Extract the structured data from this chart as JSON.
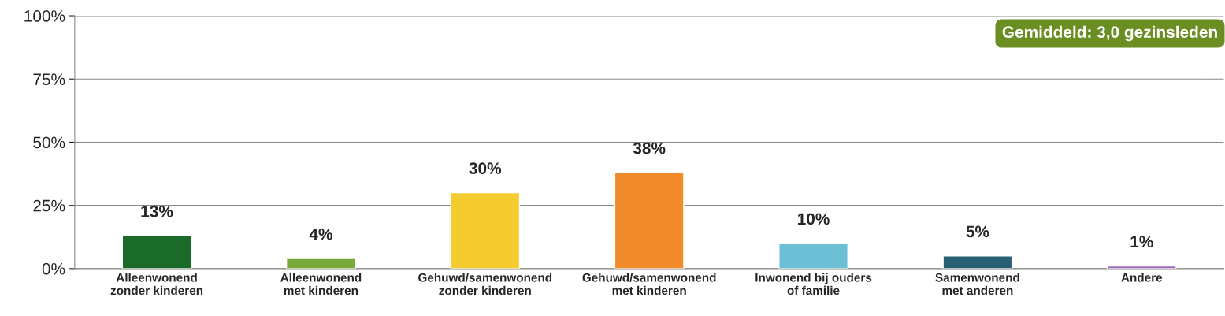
{
  "chart_data": {
    "type": "bar",
    "categories": [
      "Alleenwonend\nzonder kinderen",
      "Alleenwonend\nmet kinderen",
      "Gehuwd/samenwonend\nzonder kinderen",
      "Gehuwd/samenwonend\nmet kinderen",
      "Inwonend bij ouders\nof familie",
      "Samenwonend\nmet anderen",
      "Andere"
    ],
    "values": [
      13,
      4,
      30,
      38,
      10,
      5,
      1
    ],
    "value_labels": [
      "13%",
      "4%",
      "30%",
      "38%",
      "10%",
      "5%",
      "1%"
    ],
    "colors": [
      "#1a6b2a",
      "#7aa83a",
      "#f5cc30",
      "#f08a2a",
      "#6cc0d6",
      "#2a6075",
      "#9b6bc0"
    ],
    "ylim": [
      0,
      100
    ],
    "yticks": [
      {
        "value": 0,
        "label": "0%"
      },
      {
        "value": 25,
        "label": "25%"
      },
      {
        "value": 50,
        "label": "50%"
      },
      {
        "value": 75,
        "label": "75%"
      },
      {
        "value": 100,
        "label": "100%"
      }
    ],
    "grid": "y",
    "annotations": [
      "Gemiddeld: 3,0 gezinsleden"
    ]
  }
}
